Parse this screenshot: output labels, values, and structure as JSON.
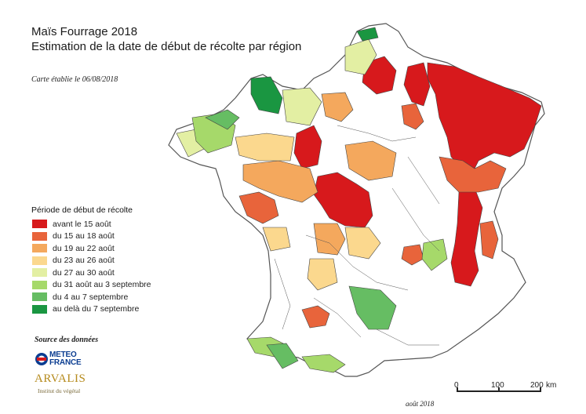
{
  "title": "Maïs Fourrage 2018",
  "subtitle": "Estimation de la date de début de récolte par région",
  "date_note": "Carte établie le 06/08/2018",
  "legend": {
    "title": "Période de début de récolte",
    "items": [
      {
        "label": "avant le 15 août",
        "color": "#d7191c"
      },
      {
        "label": "du 15 au 18 août",
        "color": "#e8643b"
      },
      {
        "label": "du 19 au 22 août",
        "color": "#f4a85d"
      },
      {
        "label": "du 23 au 26 août",
        "color": "#fbd88e"
      },
      {
        "label": "du 27 au 30 août",
        "color": "#e3efa3"
      },
      {
        "label": "du 31 août au 3 septembre",
        "color": "#a6d96a"
      },
      {
        "label": "du 4 au 7 septembre",
        "color": "#66bd63"
      },
      {
        "label": "au delà du 7 septembre",
        "color": "#1a9641"
      }
    ]
  },
  "sources": {
    "title": "Source des données",
    "meteo_line1": "METEO",
    "meteo_line2": "FRANCE",
    "arvalis": "ARVALIS",
    "arvalis_sub": "Institut du végétal"
  },
  "scale": {
    "labels": [
      "0",
      "100",
      "200"
    ],
    "unit": "km"
  },
  "footer_date": "août 2018",
  "map": {
    "outline_color": "#555555",
    "border_color": "#444444"
  }
}
